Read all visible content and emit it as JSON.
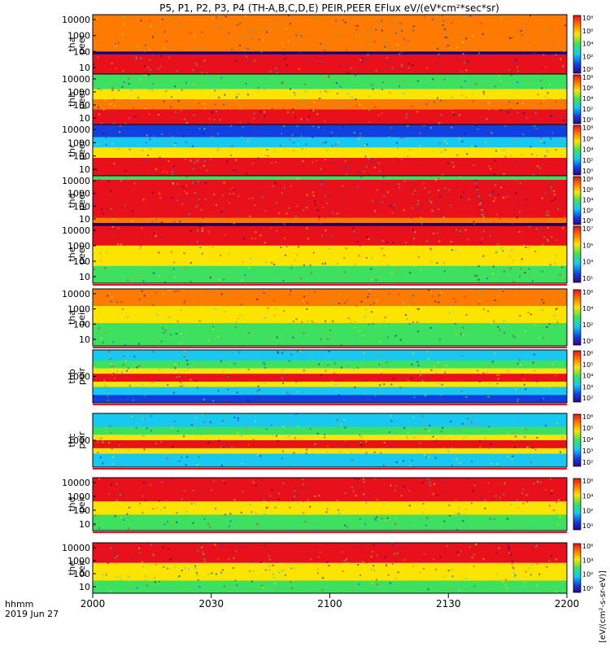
{
  "title": "P5, P1, P2, P3, P4 (TH-A,B,C,D,E) PEIR,PEER EFlux eV/(eV*cm²*sec*sr)",
  "colorbar_unit": "[eV/(cm²-s-sr-eV)]",
  "time_axis": {
    "row1_label": "hhmm",
    "row2_label": "2019 Jun 27",
    "ticks": [
      "2000",
      "2030",
      "2100",
      "2130",
      "2200"
    ]
  },
  "colors": {
    "red": "#e8101a",
    "orange": "#ff7a00",
    "yellow": "#fde400",
    "green": "#3ee060",
    "cyan": "#18c8f0",
    "blue": "#1040e0",
    "navy": "#100080"
  },
  "chart_data": {
    "type": "heatmap",
    "x": {
      "ticks": [
        "2000",
        "2030",
        "2100",
        "2130",
        "2200"
      ]
    },
    "panels": [
      {
        "name": "tha-peer",
        "label_top": "tha",
        "label_bottom": "peer",
        "y_ticks": [
          "10000",
          "1000",
          "100",
          "10"
        ],
        "colorbar_ticks": [
          "10⁸",
          "10⁶",
          "10⁴",
          "10²",
          "10⁰"
        ]
      },
      {
        "name": "thb-peer",
        "label_top": "thb",
        "label_bottom": "peer",
        "y_ticks": [
          "10000",
          "1000",
          "100",
          "10"
        ],
        "colorbar_ticks": [
          "10⁸",
          "10⁶",
          "10⁴",
          "10²",
          "10⁰"
        ]
      },
      {
        "name": "thc-peer",
        "label_top": "thc",
        "label_bottom": "peer",
        "y_ticks": [
          "10000",
          "1000",
          "100",
          "10"
        ],
        "colorbar_ticks": [
          "10⁸",
          "10⁶",
          "10⁴",
          "10²",
          "10⁰"
        ]
      },
      {
        "name": "thd-peer",
        "label_top": "thd",
        "label_bottom": "peer",
        "y_ticks": [
          "10000",
          "1000",
          "100",
          "10"
        ],
        "colorbar_ticks": [
          "10⁸",
          "10⁶",
          "10⁴",
          "10²",
          "10⁰"
        ]
      },
      {
        "name": "the-peer",
        "label_top": "the",
        "label_bottom": "peer",
        "y_ticks": [
          "10000",
          "1000",
          "100",
          "10"
        ],
        "colorbar_ticks": [
          "10⁷",
          "10⁵",
          "10³",
          "10¹"
        ]
      },
      {
        "name": "tha-peir",
        "label_top": "tha",
        "label_bottom": "peir",
        "y_ticks": [
          "10000",
          "1000",
          "100",
          "10"
        ],
        "colorbar_ticks": [
          "10⁶",
          "10⁴",
          "10²",
          "10⁰"
        ]
      },
      {
        "name": "thb-peir",
        "label_top": "thb",
        "label_bottom": "peir",
        "y_ticks": [
          "1000"
        ],
        "colorbar_ticks": [
          "10⁶",
          "10⁵",
          "10⁴",
          "10³",
          "10²"
        ]
      },
      {
        "name": "thc-peir",
        "label_top": "thc",
        "label_bottom": "peir",
        "y_ticks": [
          "1000"
        ],
        "colorbar_ticks": [
          "10⁶",
          "10⁵",
          "10⁴",
          "10³",
          "10²"
        ]
      },
      {
        "name": "thd-peir",
        "label_top": "thd",
        "label_bottom": "peir",
        "y_ticks": [
          "10000",
          "1000",
          "100",
          "10"
        ],
        "colorbar_ticks": [
          "10⁶",
          "10⁴",
          "10²",
          "10⁰"
        ]
      },
      {
        "name": "the-peir",
        "label_top": "the",
        "label_bottom": "peir",
        "y_ticks": [
          "10000",
          "1000",
          "100",
          "10"
        ],
        "colorbar_ticks": [
          "10⁶",
          "10⁴",
          "10²",
          "10⁰"
        ]
      }
    ]
  }
}
